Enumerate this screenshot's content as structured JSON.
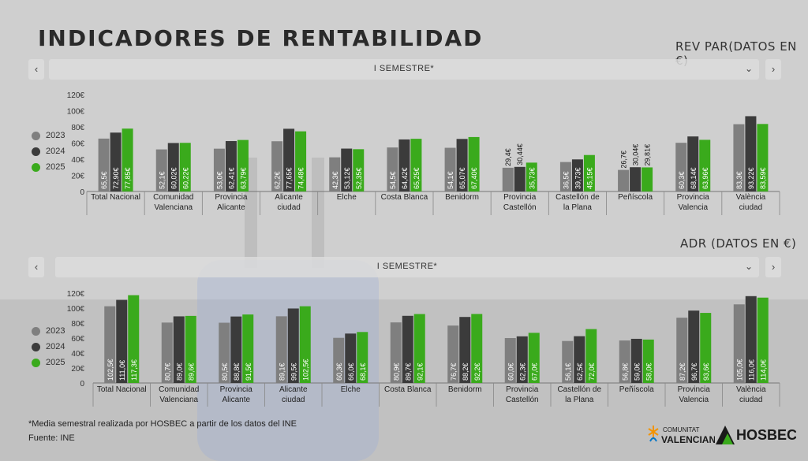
{
  "page": {
    "title": "INDICADORES DE RENTABILIDAD",
    "footnote": "*Media semestral realizada por HOSBEC a partir de los datos del INE",
    "source": "Fuente: INE",
    "logo_left": [
      "COMUNITAT",
      "VALENCIANA"
    ],
    "logo_right": "HOSBEC",
    "colors": {
      "2023": "#7f7f7f",
      "2024": "#3b3b3b",
      "2025": "#3aaa1c"
    }
  },
  "sections": [
    {
      "label": "REV PAR(DATOS EN €)",
      "selector": "I SEMESTRE*",
      "prev_icon": "chevron-left-icon",
      "next_icon": "chevron-right-icon",
      "dropdown_icon": "chevron-down-icon"
    },
    {
      "label": "ADR  (DATOS EN €)",
      "selector": "I SEMESTRE*",
      "prev_icon": "chevron-left-icon",
      "next_icon": "chevron-right-icon",
      "dropdown_icon": "chevron-down-icon"
    }
  ],
  "chart_data": [
    {
      "type": "bar",
      "title": "REV PAR(DATOS EN €)",
      "categories": [
        "Total Nacional",
        "Comunidad Valenciana",
        "Provincia Alicante",
        "Alicante ciudad",
        "Elche",
        "Costa Blanca",
        "Benidorm",
        "Provincia Castellón",
        "Castellón de la Plana",
        "Peñíscola",
        "Provincia Valencia",
        "València ciudad"
      ],
      "y_ticks": [
        "0",
        "20€",
        "40€",
        "60€",
        "80€",
        "100€",
        "120€"
      ],
      "ylim": [
        0,
        120
      ],
      "series": [
        {
          "name": "2023",
          "values": [
            65.5,
            52.1,
            53.0,
            62.2,
            42.3,
            54.5,
            54.1,
            29.4,
            36.5,
            26.7,
            60.3,
            83.3
          ],
          "labels": [
            "65,5€",
            "52,1€",
            "53,0€",
            "62,2€",
            "42,3€",
            "54,5€",
            "54,1€",
            "29,4€",
            "36,5€",
            "26,7€",
            "60,3€",
            "83,3€"
          ]
        },
        {
          "name": "2024",
          "values": [
            72.9,
            60.02,
            62.41,
            77.65,
            53.12,
            64.42,
            65.07,
            30.44,
            39.73,
            30.04,
            68.14,
            93.22
          ],
          "labels": [
            "72,90€",
            "60,02€",
            "62,41€",
            "77,65€",
            "53,12€",
            "64,42€",
            "65,07€",
            "30,44€",
            "39,73€",
            "30,04€",
            "68,14€",
            "93,22€"
          ]
        },
        {
          "name": "2025",
          "values": [
            77.85,
            60.22,
            63.79,
            74.48,
            52.35,
            65.25,
            67.4,
            35.73,
            45.15,
            29.81,
            63.96,
            83.59
          ],
          "labels": [
            "77,85€",
            "60,22€",
            "63,79€",
            "74,48€",
            "52,35€",
            "65,25€",
            "67,40€",
            "35,73€",
            "45,15€",
            "29,81€",
            "63,96€",
            "83,59€"
          ]
        }
      ]
    },
    {
      "type": "bar",
      "title": "ADR  (DATOS EN €)",
      "categories": [
        "Total Nacional",
        "Comunidad Valenciana",
        "Provincia Alicante",
        "Alicante ciudad",
        "Elche",
        "Costa Blanca",
        "Benidorm",
        "Provincia Castellón",
        "Castellón de la Plana",
        "Peñíscola",
        "Provincia Valencia",
        "València ciudad"
      ],
      "y_ticks": [
        "0",
        "20€",
        "40€",
        "60€",
        "80€",
        "100€",
        "120€"
      ],
      "ylim": [
        0,
        120
      ],
      "series": [
        {
          "name": "2023",
          "values": [
            102.5,
            80.7,
            80.5,
            89.1,
            60.3,
            80.9,
            76.7,
            60.0,
            56.1,
            56.8,
            87.2,
            105.0
          ],
          "labels": [
            "102,5€",
            "80,7€",
            "80,5€",
            "89,1€",
            "60,3€",
            "80,9€",
            "76,7€",
            "60,0€",
            "56,1€",
            "56,8€",
            "87,2€",
            "105,0€"
          ]
        },
        {
          "name": "2024",
          "values": [
            111.0,
            89.0,
            88.8,
            99.5,
            66.0,
            89.7,
            88.2,
            62.3,
            62.5,
            59.0,
            96.7,
            116.0
          ],
          "labels": [
            "111,0€",
            "89,0€",
            "88,8€",
            "99,5€",
            "66,0€",
            "89,7€",
            "88,2€",
            "62,3€",
            "62,5€",
            "59,0€",
            "96,7€",
            "116,0€"
          ]
        },
        {
          "name": "2025",
          "values": [
            117.3,
            89.6,
            91.5,
            102.5,
            68.1,
            92.1,
            92.2,
            67.0,
            72.0,
            58.0,
            93.6,
            114.0
          ],
          "labels": [
            "117,3€",
            "89,6€",
            "91,5€",
            "102,5€",
            "68,1€",
            "92,1€",
            "92,2€",
            "67,0€",
            "72,0€",
            "58,0€",
            "93,6€",
            "114,0€"
          ]
        }
      ]
    }
  ]
}
